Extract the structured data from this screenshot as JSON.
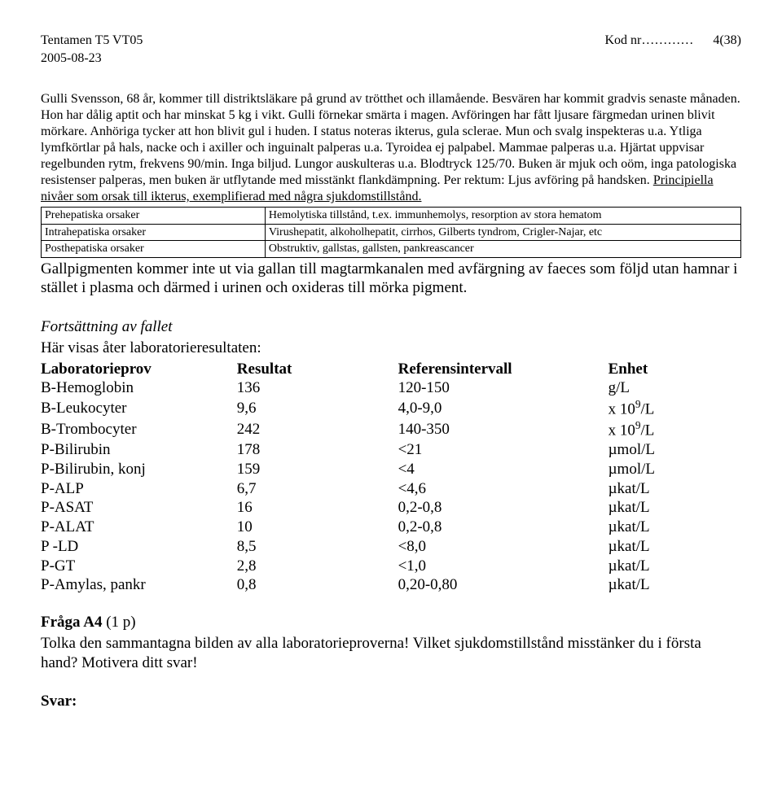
{
  "header": {
    "left1": "Tentamen T5 VT05",
    "right_code_label": "Kod nr…………",
    "right_page": "4(38)",
    "left2": "2005-08-23"
  },
  "case_text": "Gulli Svensson, 68 år, kommer till distriktsläkare på grund av trötthet och illamående. Besvären har kommit gradvis senaste månaden. Hon har dålig aptit och har minskat 5 kg i vikt. Gulli förnekar smärta i magen. Avföringen har fått ljusare färgmedan urinen blivit mörkare. Anhöriga tycker att hon blivit gul i huden. I status noteras ikterus, gula sclerae. Mun och svalg inspekteras u.a. Ytliga lymfkörtlar på hals, nacke och i axiller och inguinalt palperas u.a. Tyroidea ej palpabel. Mammae palperas u.a. Hjärtat uppvisar regelbunden rytm, frekvens 90/min. Inga biljud. Lungor auskulteras u.a. Blodtryck 125/70. Buken är mjuk och oöm, inga patologiska resistenser palperas, men buken är utflytande med misstänkt flankdämpning. Per rektum: Ljus avföring på handsken. ",
  "case_underline": "Principiella nivåer som orsak till ikterus,  exemplifierad med några sjukdomstillstånd.",
  "causes": {
    "rows": [
      [
        "Prehepatiska orsaker",
        "Hemolytiska tillstånd, t.ex. immunhemolys, resorption av stora hematom"
      ],
      [
        "Intrahepatiska orsaker",
        "Virushepatit, alkoholhepatit, cirrhos, Gilberts tyndrom, Crigler-Najar, etc"
      ],
      [
        "Posthepatiska orsaker",
        "Obstruktiv, gallstas, gallsten, pankreascancer"
      ]
    ]
  },
  "gall_text": "Gallpigmenten kommer inte ut via gallan till magtarmkanalen med avfärgning av faeces som följd utan hamnar i stället i plasma och därmed i urinen och oxideras till mörka pigment.",
  "cont_label": "Fortsättning av fallet",
  "lab_intro": "Här visas åter laboratorieresultaten:",
  "lab": {
    "headers": [
      "Laboratorieprov",
      "Resultat",
      "Referensintervall",
      "Enhet"
    ],
    "rows": [
      [
        "B-Hemoglobin",
        "136",
        "120-150",
        "g/L"
      ],
      [
        "B-Leukocyter",
        "9,6",
        "4,0-9,0",
        "x 10^9/L"
      ],
      [
        "B-Trombocyter",
        "242",
        "140-350",
        "x 10^9/L"
      ],
      [
        "P-Bilirubin",
        "178",
        "<21",
        "µmol/L"
      ],
      [
        "P-Bilirubin, konj",
        "159",
        "<4",
        "µmol/L"
      ],
      [
        "P-ALP",
        "6,7",
        "<4,6",
        "µkat/L"
      ],
      [
        "P-ASAT",
        "16",
        "0,2-0,8",
        "µkat/L"
      ],
      [
        "P-ALAT",
        "10",
        "0,2-0,8",
        "µkat/L"
      ],
      [
        "P -LD",
        "8,5",
        "<8,0",
        "µkat/L"
      ],
      [
        "P-GT",
        "2,8",
        "<1,0",
        "µkat/L"
      ],
      [
        "P-Amylas, pankr",
        "0,8",
        "0,20-0,80",
        "µkat/L"
      ]
    ]
  },
  "question": {
    "label": "Fråga A4",
    "points": " (1 p)",
    "text": "Tolka den sammantagna bilden av alla laboratorieproverna! Vilket sjukdomstillstånd misstänker du i första hand? Motivera ditt svar!"
  },
  "svar_label": "Svar:"
}
